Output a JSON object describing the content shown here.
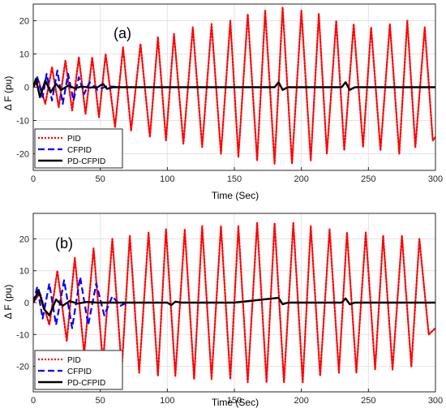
{
  "chart_data": [
    {
      "type": "line",
      "panel_label": "(a)",
      "xlabel": "Time (Sec)",
      "ylabel": "Δ F (pu)",
      "xlim": [
        0,
        300
      ],
      "ylim": [
        -25,
        25
      ],
      "xticks": [
        0,
        50,
        100,
        150,
        200,
        250,
        300
      ],
      "yticks": [
        -20,
        -10,
        0,
        10,
        20
      ],
      "grid": true,
      "legend_position": "bottom-left",
      "series": [
        {
          "name": "PID",
          "style": "dotted",
          "color": "#ff0000",
          "x": [
            0,
            4,
            9,
            14,
            19,
            24,
            29,
            34,
            39,
            44,
            49,
            54,
            61,
            67,
            73,
            80,
            87,
            93,
            99,
            105,
            112,
            119,
            126,
            133,
            140,
            147,
            153,
            160,
            167,
            173,
            180,
            186,
            193,
            200,
            207,
            213,
            219,
            226,
            232,
            239,
            246,
            252,
            259,
            266,
            273,
            279,
            285,
            292,
            298,
            300
          ],
          "y": [
            0,
            2,
            -5,
            6,
            -6,
            8,
            -7,
            9,
            -8,
            9,
            -9,
            10,
            -12,
            12,
            -13,
            13,
            -15,
            15,
            -16,
            16,
            -17,
            18,
            -18,
            19,
            -20,
            20,
            -21,
            22,
            -22,
            23,
            -23,
            24,
            -23,
            23,
            -22,
            22,
            -20,
            20,
            -19,
            19,
            -18,
            18,
            -19,
            19,
            -20,
            20,
            -18,
            18,
            -16,
            -15
          ]
        },
        {
          "name": "CFPID",
          "style": "dashed",
          "color": "#0000ff",
          "x": [
            0,
            3,
            7,
            10,
            14,
            18,
            22,
            26,
            30,
            34,
            38,
            42,
            48,
            55,
            65
          ],
          "y": [
            0,
            3,
            -3,
            4,
            -4,
            5,
            -5,
            4,
            -4,
            3,
            -2,
            1.5,
            -0.8,
            0.3,
            0
          ]
        },
        {
          "name": "PD-CFPID",
          "style": "solid",
          "color": "#000000",
          "x": [
            0,
            2,
            5,
            9,
            13,
            17,
            21,
            26,
            31,
            36,
            42,
            48,
            52,
            55,
            60,
            70,
            90,
            120,
            150,
            180,
            183,
            186,
            190,
            200,
            230,
            233,
            236,
            240,
            250,
            300
          ],
          "y": [
            0,
            2.5,
            -3,
            2,
            -1.5,
            1,
            -0.8,
            0.5,
            -0.3,
            0.2,
            -0.1,
            0,
            1,
            -0.5,
            0,
            0,
            0,
            0,
            0,
            0,
            1.5,
            -0.8,
            0,
            0,
            0,
            1.5,
            -0.8,
            0,
            0,
            0
          ]
        }
      ]
    },
    {
      "type": "line",
      "panel_label": "(b)",
      "xlabel": "Time (Sec)",
      "ylabel": "Δ F (pu)",
      "xlim": [
        0,
        300
      ],
      "ylim": [
        -28,
        28
      ],
      "xticks": [
        0,
        50,
        100,
        150,
        200,
        250,
        300
      ],
      "yticks": [
        -20,
        -10,
        0,
        10,
        20
      ],
      "grid": true,
      "legend_position": "bottom-left",
      "series": [
        {
          "name": "PID",
          "style": "dotted",
          "color": "#ff0000",
          "x": [
            0,
            5,
            12,
            18,
            25,
            31,
            38,
            45,
            52,
            59,
            66,
            72,
            79,
            86,
            93,
            99,
            106,
            113,
            120,
            126,
            133,
            140,
            147,
            153,
            160,
            167,
            174,
            180,
            187,
            194,
            201,
            207,
            214,
            221,
            228,
            234,
            241,
            248,
            255,
            261,
            268,
            275,
            282,
            288,
            295,
            300
          ],
          "y": [
            0,
            3,
            -7,
            10,
            -12,
            14,
            -16,
            17,
            -19,
            20,
            -21,
            21,
            -22,
            22,
            -23,
            23,
            -23,
            23,
            -24,
            24,
            -24,
            24,
            -24,
            24,
            -25,
            25,
            -25,
            25,
            -25,
            25,
            -25,
            24,
            -23,
            23,
            -22,
            22,
            -22,
            22,
            -21,
            21,
            -21,
            21,
            -20,
            20,
            -10,
            -8
          ]
        },
        {
          "name": "CFPID",
          "style": "dashed",
          "color": "#0000ff",
          "x": [
            0,
            3,
            7,
            12,
            17,
            23,
            29,
            35,
            41,
            47,
            53,
            59,
            65,
            70
          ],
          "y": [
            0,
            5,
            -5,
            6,
            -7,
            7,
            -8,
            8,
            -7,
            6,
            -4,
            2,
            -1,
            0
          ]
        },
        {
          "name": "PD-CFPID",
          "style": "solid",
          "color": "#000000",
          "x": [
            0,
            4,
            8,
            12,
            17,
            22,
            27,
            33,
            40,
            48,
            56,
            70,
            100,
            103,
            106,
            110,
            150,
            183,
            186,
            190,
            200,
            230,
            233,
            236,
            240,
            300
          ],
          "y": [
            0,
            4,
            -2,
            -4,
            1,
            -1,
            0.5,
            -0.3,
            0.2,
            0,
            0,
            0,
            0,
            -0.8,
            0.3,
            0,
            0,
            1.5,
            -0.5,
            0,
            0,
            0,
            1.3,
            -0.5,
            0,
            0
          ]
        }
      ]
    }
  ]
}
